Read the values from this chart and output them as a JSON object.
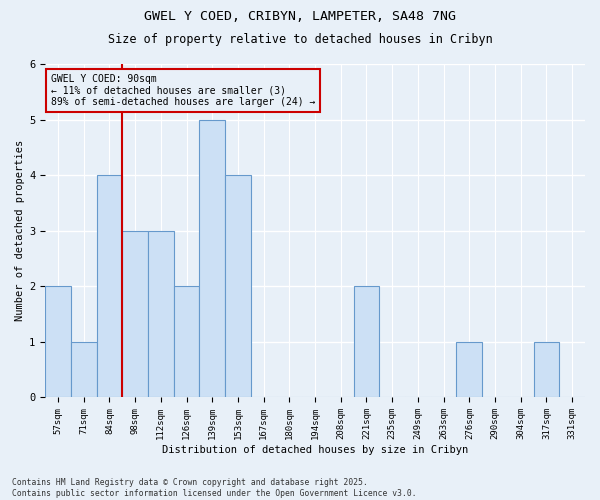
{
  "title1": "GWEL Y COED, CRIBYN, LAMPETER, SA48 7NG",
  "title2": "Size of property relative to detached houses in Cribyn",
  "xlabel": "Distribution of detached houses by size in Cribyn",
  "ylabel": "Number of detached properties",
  "categories": [
    "57sqm",
    "71sqm",
    "84sqm",
    "98sqm",
    "112sqm",
    "126sqm",
    "139sqm",
    "153sqm",
    "167sqm",
    "180sqm",
    "194sqm",
    "208sqm",
    "221sqm",
    "235sqm",
    "249sqm",
    "263sqm",
    "276sqm",
    "290sqm",
    "304sqm",
    "317sqm",
    "331sqm"
  ],
  "values": [
    2,
    1,
    4,
    3,
    3,
    2,
    5,
    4,
    0,
    0,
    0,
    0,
    2,
    0,
    0,
    0,
    1,
    0,
    0,
    1,
    0
  ],
  "bar_color": "#cce0f5",
  "bar_edge_color": "#6699cc",
  "bar_linewidth": 0.8,
  "bg_color": "#e8f0f8",
  "grid_color": "#ffffff",
  "vline_x_index": 2.5,
  "vline_color": "#cc0000",
  "annotation_text": "GWEL Y COED: 90sqm\n← 11% of detached houses are smaller (3)\n89% of semi-detached houses are larger (24) →",
  "annotation_box_color": "#cc0000",
  "footer": "Contains HM Land Registry data © Crown copyright and database right 2025.\nContains public sector information licensed under the Open Government Licence v3.0.",
  "ylim": [
    0,
    6
  ],
  "yticks": [
    0,
    1,
    2,
    3,
    4,
    5,
    6
  ]
}
